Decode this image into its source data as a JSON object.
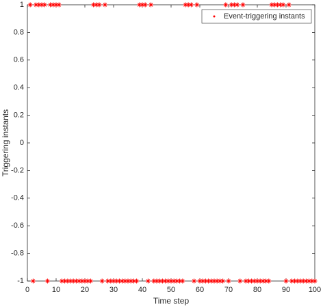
{
  "chart_data": {
    "type": "scatter",
    "xlabel": "Time step",
    "ylabel": "Triggering instants",
    "x": [
      1,
      2,
      3,
      4,
      5,
      6,
      7,
      8,
      9,
      10,
      11,
      12,
      13,
      14,
      15,
      16,
      17,
      18,
      19,
      20,
      21,
      22,
      23,
      24,
      25,
      26,
      27,
      28,
      29,
      30,
      31,
      32,
      33,
      34,
      35,
      36,
      37,
      38,
      39,
      40,
      41,
      42,
      43,
      44,
      45,
      46,
      47,
      48,
      49,
      50,
      51,
      52,
      53,
      54,
      55,
      56,
      57,
      58,
      59,
      60,
      61,
      62,
      63,
      64,
      65,
      66,
      67,
      68,
      69,
      70,
      71,
      72,
      73,
      74,
      75,
      76,
      77,
      78,
      79,
      80,
      81,
      82,
      83,
      84,
      85,
      86,
      87,
      88,
      89,
      90,
      91,
      92,
      93,
      94,
      95,
      96,
      97,
      98,
      99,
      100
    ],
    "series": [
      {
        "name": "Event-triggering instants",
        "color": "#ff0000",
        "values": [
          1,
          -1,
          1,
          1,
          1,
          1,
          -1,
          1,
          1,
          1,
          1,
          -1,
          -1,
          -1,
          -1,
          -1,
          -1,
          -1,
          -1,
          -1,
          -1,
          -1,
          1,
          1,
          1,
          -1,
          1,
          -1,
          -1,
          -1,
          -1,
          -1,
          -1,
          -1,
          -1,
          -1,
          -1,
          -1,
          1,
          1,
          1,
          -1,
          1,
          -1,
          -1,
          -1,
          -1,
          -1,
          -1,
          -1,
          -1,
          -1,
          -1,
          -1,
          1,
          1,
          1,
          -1,
          1,
          -1,
          -1,
          -1,
          -1,
          -1,
          -1,
          -1,
          -1,
          -1,
          1,
          -1,
          1,
          1,
          1,
          -1,
          1,
          -1,
          -1,
          -1,
          -1,
          -1,
          -1,
          -1,
          -1,
          -1,
          1,
          1,
          1,
          1,
          1,
          -1,
          1,
          -1,
          -1,
          -1,
          -1,
          -1,
          -1,
          -1,
          -1,
          -1
        ]
      }
    ],
    "xlim": [
      0,
      100
    ],
    "xticks": [
      0,
      10,
      20,
      30,
      40,
      50,
      60,
      70,
      80,
      90,
      100
    ],
    "ylim": [
      -1,
      1
    ],
    "yticks": [
      -1,
      -0.8,
      -0.6,
      -0.4,
      -0.2,
      0,
      0.2,
      0.4,
      0.6,
      0.8,
      1
    ],
    "legend": "upper right"
  }
}
